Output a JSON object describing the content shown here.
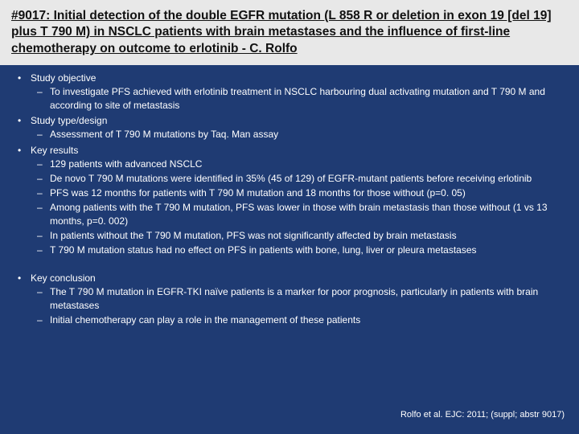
{
  "colors": {
    "background": "#1f3b73",
    "titleBarBg": "#e8e8e8",
    "titleText": "#111111",
    "bodyText": "#ffffff"
  },
  "typography": {
    "titleFontSize": 15.5,
    "bodyFontSize": 12,
    "citationFontSize": 11,
    "fontFamily": "Arial"
  },
  "title": "#9017: Initial detection of the double EGFR mutation (L 858 R or deletion in exon 19 [del 19] plus T 790 M) in NSCLC patients with brain metastases and the influence of first-line chemotherapy on outcome to erlotinib  - C. Rolfo",
  "sections": {
    "objective": {
      "heading": "Study objective",
      "items": [
        "To investigate PFS achieved with erlotinib treatment in NSCLC harbouring dual activating mutation and T 790 M and according to site of metastasis"
      ]
    },
    "design": {
      "heading": "Study type/design",
      "items": [
        "Assessment of T 790 M mutations by Taq. Man assay"
      ]
    },
    "results": {
      "heading": "Key results",
      "items": [
        "129 patients with advanced NSCLC",
        "De novo T 790 M mutations were identified in 35% (45 of 129) of EGFR-mutant patients before receiving erlotinib",
        "PFS was 12 months for patients with T 790 M mutation and 18 months for those without (p=0. 05)",
        "Among patients with the T 790 M mutation, PFS was lower in those with brain metastasis than those without (1 vs 13 months, p=0. 002)",
        "In patients without the T 790 M mutation, PFS was not significantly affected by brain metastasis",
        "T 790 M mutation status had no effect on PFS in patients with bone, lung, liver or pleura metastases"
      ]
    },
    "conclusion": {
      "heading": "Key conclusion",
      "items": [
        "The T 790 M mutation in EGFR-TKI naïve patients is a marker for poor prognosis, particularly in patients with brain metastases",
        "Initial chemotherapy can play a role in the management of these patients"
      ]
    }
  },
  "citation": "Rolfo et al. EJC: 2011; (suppl; abstr 9017)"
}
